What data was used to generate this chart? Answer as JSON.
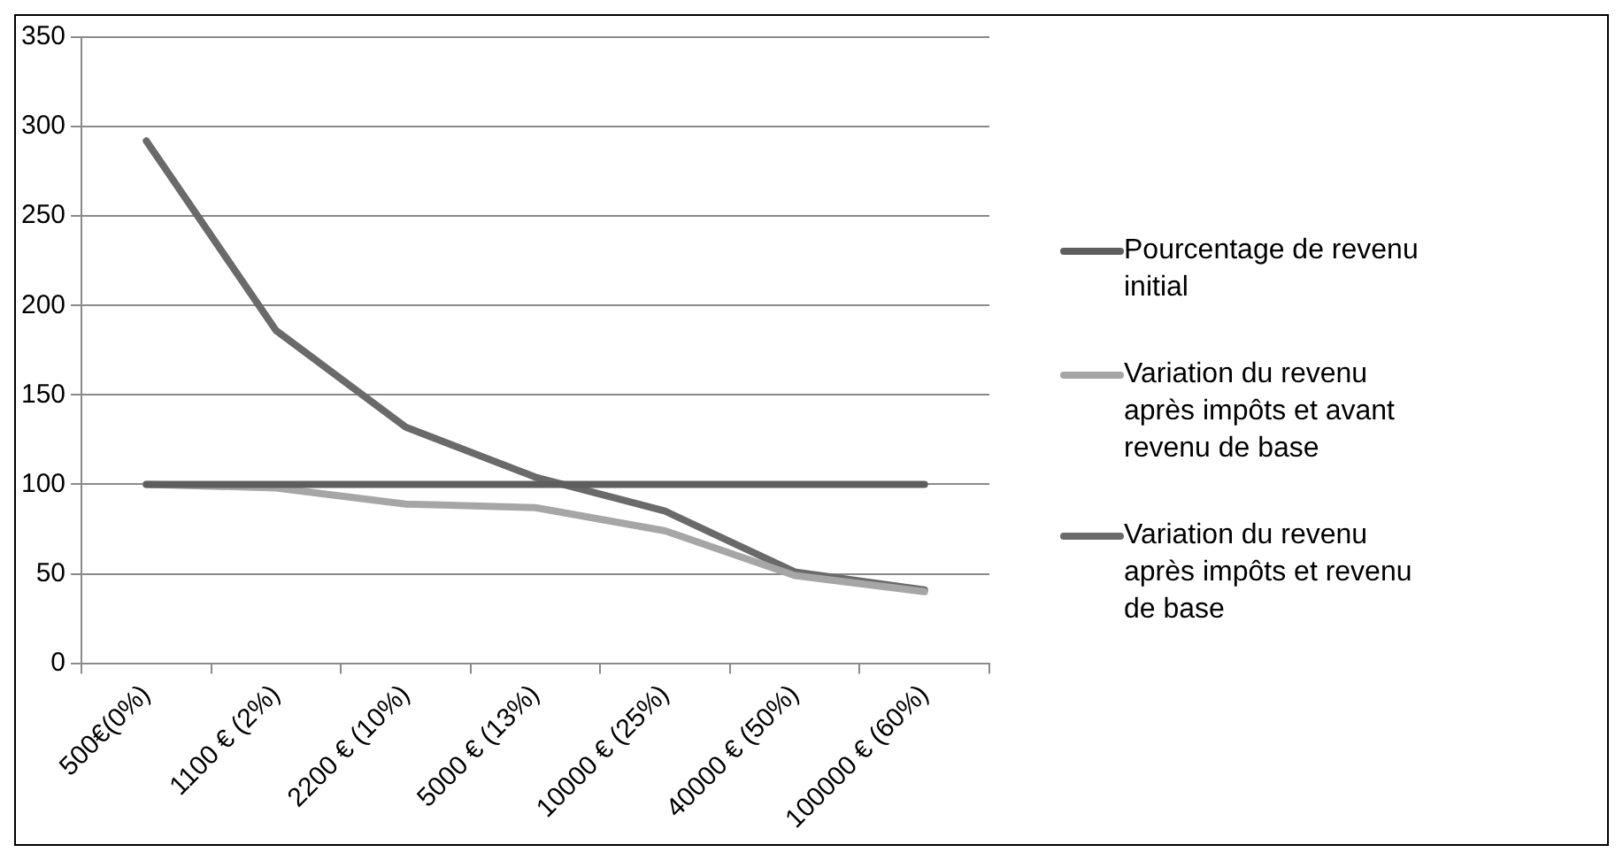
{
  "chart_data": {
    "type": "line",
    "categories": [
      "500€(0%)",
      "1100 € (2%)",
      "2200 € (10%)",
      "5000 € (13%)",
      "10000 € (25%)",
      "40000 € (50%)",
      "100000 € (60%)"
    ],
    "series": [
      {
        "name": "Pourcentage de revenu initial",
        "color": "#5e5e5e",
        "values": [
          100,
          100,
          100,
          100,
          100,
          100,
          100
        ]
      },
      {
        "name": "Variation du revenu après impôts et avant revenu de base",
        "color": "#a6a6a6",
        "values": [
          100,
          98,
          89,
          87,
          74,
          49,
          40
        ]
      },
      {
        "name": "Variation du revenu après impôts et revenu de base",
        "color": "#6a6a6a",
        "values": [
          292,
          186,
          132,
          104,
          85,
          51,
          41
        ]
      }
    ],
    "ylim": [
      0,
      350
    ],
    "yticks": [
      0,
      50,
      100,
      150,
      200,
      250,
      300,
      350
    ],
    "grid": "y",
    "legend": "right",
    "marker": "none",
    "line_style": "solid"
  }
}
